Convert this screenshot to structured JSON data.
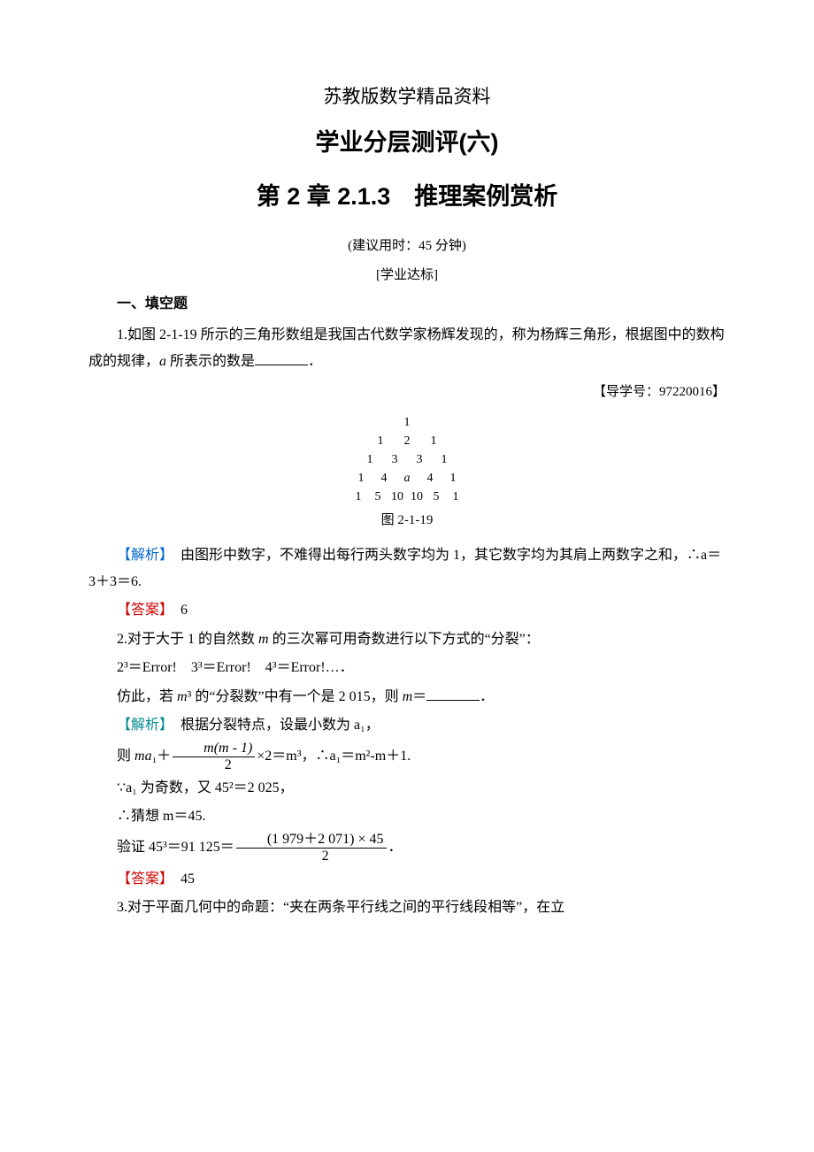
{
  "titles": {
    "pre": "苏教版数学精品资料",
    "main": "学业分层测评(六)",
    "sub": "第 2 章  2.1.3　推理案例赏析"
  },
  "notes": {
    "time": "(建议用时：45 分钟)",
    "level": "[学业达标]"
  },
  "sections": {
    "fill": "一、填空题"
  },
  "q1": {
    "text_a": "1.如图 2-1-19 所示的三角形数组是我国古代数学家杨辉发现的，称为杨辉三角形，根据图中的数构成的规律，",
    "text_b": " 所表示的数是",
    "text_c": "．",
    "guide": "【导学号：97220016】",
    "pascal": {
      "rows": [
        [
          "1"
        ],
        [
          "1",
          "2",
          "1"
        ],
        [
          "1",
          "3",
          "3",
          "1"
        ],
        [
          "1",
          "4",
          "a",
          "4",
          "1"
        ],
        [
          "1",
          "5",
          "10",
          "10",
          "5",
          "1"
        ]
      ],
      "cell_widths": [
        36,
        30,
        28,
        26,
        22
      ],
      "fontsize": 14
    },
    "figcap": "图 2-1-19",
    "analysis_label": "【解析】",
    "analysis": "　由图形中数字，不难得出每行两头数字均为 1，其它数字均为其肩上两数字之和，∴a＝3＋3＝6.",
    "answer_label": "【答案】",
    "answer": "　6"
  },
  "q2": {
    "line1_a": "2.对于大于 1 的自然数 ",
    "line1_b": " 的三次幂可用奇数进行以下方式的“分裂”：",
    "line2": "2³＝Error!　3³＝Error!　4³＝Error!…．",
    "line3_a": "仿此，若 ",
    "line3_b": "³ 的“分裂数”中有一个是 2 015，则 ",
    "line3_c": "＝",
    "line3_d": "．",
    "analysis_label": "【解析】",
    "analysis1": "　根据分裂特点，设最小数为 a₁，",
    "eq1_a": "则 ",
    "eq1_num": "m(m - 1)",
    "eq1_den": "2",
    "eq1_b": "×2＝m³，∴a₁＝m²-m＋1.",
    "line_odd": "∵a₁ 为奇数，又 45²＝2 025，",
    "line_guess": "∴猜想 m＝45.",
    "verify_a": "验证 45³＝91 125＝",
    "verify_num": "(1 979＋2 071)  × 45",
    "verify_den": "2",
    "verify_b": "．",
    "answer_label": "【答案】",
    "answer": "　45"
  },
  "q3": {
    "text": "3.对于平面几何中的命题：“夹在两条平行线之间的平行线段相等”，在立"
  },
  "colors": {
    "blue": "#0066cc",
    "red": "#cc0000",
    "cyan": "#008b8b"
  }
}
